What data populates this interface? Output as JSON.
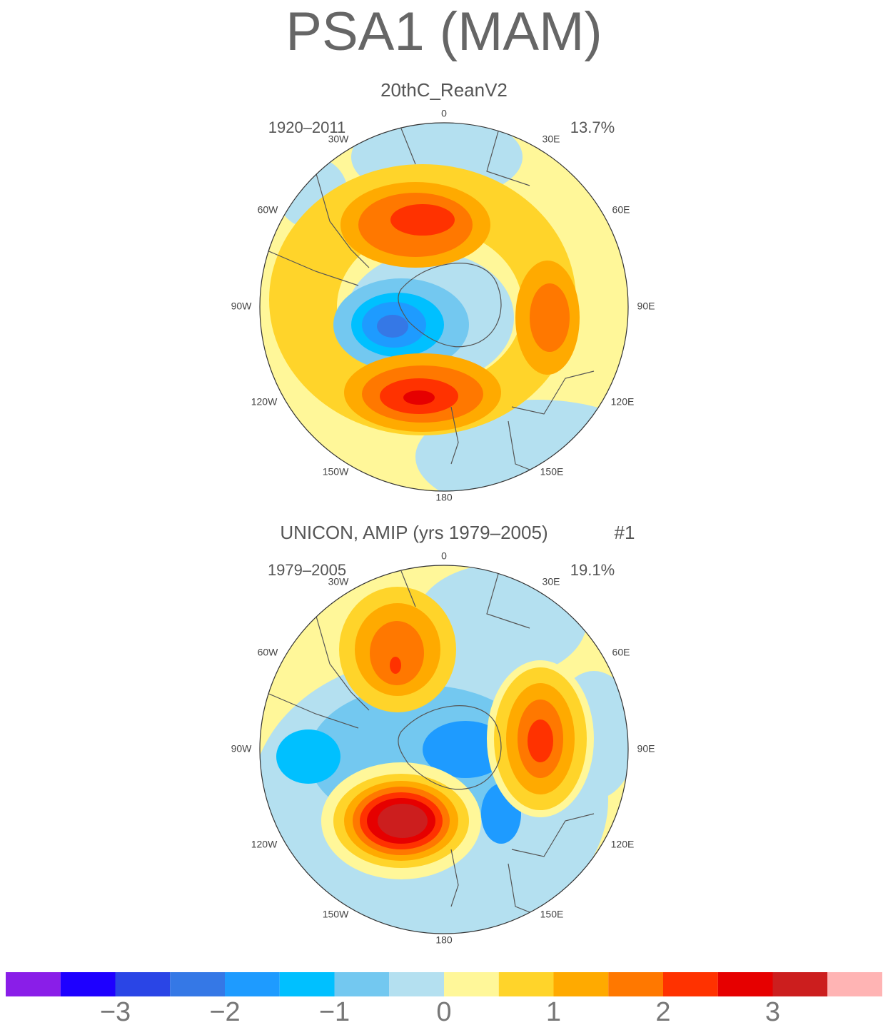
{
  "title": "PSA1 (MAM)",
  "panels": [
    {
      "subtitle": "20thC_ReanV2",
      "period": "1920–2011",
      "percent": "13.7%",
      "lon_labels": [
        "0",
        "30E",
        "60E",
        "90E",
        "120E",
        "150E",
        "180",
        "150W",
        "120W",
        "90W",
        "60W",
        "30W"
      ]
    },
    {
      "subtitle": "UNICON, AMIP (yrs 1979–2005)",
      "tag": "#1",
      "period": "1979–2005",
      "percent": "19.1%",
      "lon_labels": [
        "0",
        "30E",
        "60E",
        "90E",
        "120E",
        "150E",
        "180",
        "150W",
        "120W",
        "90W",
        "60W",
        "30W"
      ]
    }
  ],
  "colorbar": {
    "colors": [
      "#8a1ee8",
      "#1e00ff",
      "#2a45e6",
      "#3578e6",
      "#1e9bff",
      "#00c0ff",
      "#73c8f0",
      "#b4e0f0",
      "#fff799",
      "#ffd42a",
      "#ffaa00",
      "#ff7800",
      "#ff3200",
      "#e60000",
      "#cc1e1e",
      "#ffb4b4"
    ],
    "levels": [
      -3.5,
      -3,
      -2.5,
      -2,
      -1.5,
      -1,
      -0.5,
      0,
      0.5,
      1,
      1.5,
      2,
      2.5,
      3,
      3.5
    ],
    "ticks": [
      {
        "value": -3,
        "label": "−3"
      },
      {
        "value": -2,
        "label": "−2"
      },
      {
        "value": -1,
        "label": "−1"
      },
      0,
      1,
      2,
      3
    ]
  }
}
